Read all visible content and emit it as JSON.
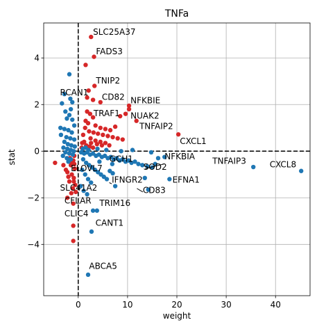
{
  "chart_data": {
    "type": "scatter",
    "title": "TNFa",
    "xlabel": "weight",
    "ylabel": "stat",
    "xlim": [
      -7,
      47
    ],
    "ylim": [
      -6.2,
      5.5
    ],
    "xticks": [
      0,
      10,
      20,
      30,
      40
    ],
    "yticks": [
      -4,
      -2,
      0,
      2,
      4
    ],
    "grid": true,
    "reference_lines": {
      "x": 0,
      "y": 0,
      "style": "dashed"
    },
    "colors": {
      "positive": "#d62728",
      "negative": "#1f77b4"
    },
    "series": [
      {
        "color_key": "positive",
        "points": [
          [
            2.6,
            4.9
          ],
          [
            3.2,
            4.05
          ],
          [
            1.5,
            3.7
          ],
          [
            3.3,
            2.8
          ],
          [
            2.1,
            2.6
          ],
          [
            1.8,
            2.3
          ],
          [
            3.0,
            2.2
          ],
          [
            4.5,
            2.1
          ],
          [
            10.3,
            1.95
          ],
          [
            10.3,
            1.8
          ],
          [
            9.6,
            1.6
          ],
          [
            8.5,
            1.5
          ],
          [
            11.8,
            1.3
          ],
          [
            20.3,
            0.72
          ],
          [
            1.8,
            1.7
          ],
          [
            2.4,
            1.6
          ],
          [
            3.0,
            1.45
          ],
          [
            1.5,
            1.3
          ],
          [
            2.0,
            1.2
          ],
          [
            3.5,
            1.1
          ],
          [
            4.5,
            1.0
          ],
          [
            5.5,
            0.95
          ],
          [
            6.5,
            0.9
          ],
          [
            7.5,
            1.05
          ],
          [
            2.2,
            0.85
          ],
          [
            3.1,
            0.8
          ],
          [
            4.0,
            0.75
          ],
          [
            5.0,
            0.7
          ],
          [
            6.0,
            0.65
          ],
          [
            7.0,
            0.6
          ],
          [
            8.0,
            0.55
          ],
          [
            9.0,
            0.5
          ],
          [
            2.5,
            0.55
          ],
          [
            3.5,
            0.45
          ],
          [
            4.5,
            0.4
          ],
          [
            5.5,
            0.35
          ],
          [
            1.2,
            0.4
          ],
          [
            1.6,
            0.25
          ],
          [
            2.3,
            0.2
          ],
          [
            3.0,
            0.15
          ],
          [
            1.4,
            1.0
          ],
          [
            1.0,
            0.7
          ],
          [
            0.8,
            0.35
          ],
          [
            0.7,
            0.15
          ],
          [
            2.6,
            0.35
          ],
          [
            3.8,
            0.3
          ],
          [
            4.8,
            0.25
          ],
          [
            6.3,
            0.25
          ],
          [
            -0.8,
            -0.2
          ],
          [
            -1.0,
            -0.4
          ],
          [
            -1.5,
            -0.6
          ],
          [
            -0.7,
            -0.75
          ],
          [
            -2.2,
            -0.9
          ],
          [
            -1.3,
            -1.0
          ],
          [
            -0.9,
            -1.15
          ],
          [
            -1.8,
            -1.3
          ],
          [
            -0.6,
            -1.45
          ],
          [
            -1.1,
            -1.6
          ],
          [
            -0.5,
            -1.75
          ],
          [
            -0.9,
            -1.3
          ],
          [
            -4.7,
            -0.5
          ],
          [
            -3.0,
            -0.6
          ],
          [
            -2.5,
            -0.8
          ],
          [
            -1.7,
            -0.3
          ],
          [
            -1.3,
            -0.5
          ],
          [
            -0.8,
            -0.55
          ],
          [
            -2.0,
            -1.1
          ],
          [
            -1.4,
            -1.8
          ],
          [
            -2.2,
            -2.0
          ],
          [
            -1.0,
            -2.25
          ],
          [
            -1.0,
            -3.2
          ],
          [
            -1.0,
            -3.85
          ]
        ]
      },
      {
        "color_key": "negative",
        "points": [
          [
            -1.8,
            3.3
          ],
          [
            -2.8,
            2.45
          ],
          [
            -3.3,
            2.05
          ],
          [
            -1.5,
            1.8
          ],
          [
            -1.8,
            1.55
          ],
          [
            -2.3,
            1.4
          ],
          [
            -1.2,
            1.35
          ],
          [
            -3.6,
            1.0
          ],
          [
            -2.8,
            0.95
          ],
          [
            -2.0,
            0.9
          ],
          [
            -1.3,
            0.8
          ],
          [
            -3.5,
            0.7
          ],
          [
            -2.4,
            0.6
          ],
          [
            -1.6,
            0.55
          ],
          [
            -0.8,
            0.5
          ],
          [
            -2.8,
            0.4
          ],
          [
            -2.1,
            0.3
          ],
          [
            -1.4,
            0.25
          ],
          [
            -0.7,
            0.2
          ],
          [
            -3.0,
            0.15
          ],
          [
            -2.2,
            0.1
          ],
          [
            -1.5,
            0.05
          ],
          [
            -0.9,
            0.0
          ],
          [
            -2.6,
            -0.05
          ],
          [
            -1.8,
            -0.1
          ],
          [
            -1.1,
            -0.15
          ],
          [
            -3.1,
            -0.2
          ],
          [
            -2.3,
            -0.3
          ],
          [
            -1.5,
            -0.35
          ],
          [
            -2.0,
            -0.45
          ],
          [
            -1.2,
            2.1
          ],
          [
            -0.8,
            1.1
          ],
          [
            -2.6,
            1.7
          ],
          [
            -1.6,
            2.25
          ],
          [
            0.6,
            -0.05
          ],
          [
            1.2,
            -0.1
          ],
          [
            1.8,
            -0.05
          ],
          [
            2.4,
            -0.15
          ],
          [
            3.0,
            -0.1
          ],
          [
            3.6,
            -0.2
          ],
          [
            4.2,
            -0.15
          ],
          [
            4.8,
            -0.25
          ],
          [
            5.4,
            -0.2
          ],
          [
            6.0,
            -0.3
          ],
          [
            6.6,
            -0.25
          ],
          [
            7.2,
            -0.35
          ],
          [
            7.8,
            -0.3
          ],
          [
            8.4,
            -0.4
          ],
          [
            9.0,
            -0.35
          ],
          [
            9.6,
            -0.45
          ],
          [
            10.2,
            -0.4
          ],
          [
            10.8,
            -0.5
          ],
          [
            11.5,
            -0.45
          ],
          [
            12.2,
            -0.55
          ],
          [
            13.0,
            -0.6
          ],
          [
            14.0,
            -0.65
          ],
          [
            15.0,
            -0.7
          ],
          [
            16.2,
            -0.3
          ],
          [
            17.5,
            -0.25
          ],
          [
            1.0,
            -0.35
          ],
          [
            1.6,
            -0.5
          ],
          [
            2.2,
            -0.6
          ],
          [
            2.8,
            -0.7
          ],
          [
            3.4,
            -0.8
          ],
          [
            4.0,
            -0.9
          ],
          [
            4.6,
            -1.0
          ],
          [
            5.2,
            -1.1
          ],
          [
            5.8,
            -1.2
          ],
          [
            6.4,
            -0.85
          ],
          [
            7.0,
            -0.95
          ],
          [
            0.8,
            -0.8
          ],
          [
            1.4,
            -1.0
          ],
          [
            2.0,
            -1.2
          ],
          [
            2.6,
            -1.35
          ],
          [
            0.5,
            -1.5
          ],
          [
            1.1,
            -1.7
          ],
          [
            1.8,
            -1.85
          ],
          [
            7.5,
            -1.5
          ],
          [
            13.5,
            -1.15
          ],
          [
            14.2,
            -1.65
          ],
          [
            18.5,
            -1.2
          ],
          [
            35.5,
            -0.68
          ],
          [
            45.2,
            -0.85
          ],
          [
            3.0,
            -2.55
          ],
          [
            3.8,
            -2.55
          ],
          [
            2.7,
            -3.45
          ],
          [
            2.0,
            -5.3
          ],
          [
            15.6,
            -0.55
          ],
          [
            14.8,
            -0.05
          ],
          [
            11.0,
            0.05
          ],
          [
            0.9,
            0.1
          ],
          [
            1.5,
            0.15
          ],
          [
            2.1,
            0.05
          ],
          [
            3.9,
            0.1
          ],
          [
            5.7,
            0.05
          ],
          [
            8.7,
            0.0
          ],
          [
            4.3,
            -0.45
          ],
          [
            6.9,
            -0.55
          ]
        ]
      }
    ],
    "annotations": [
      {
        "text": "SLC25A37",
        "x": 3.0,
        "y": 5.0
      },
      {
        "text": "FADS3",
        "x": 3.6,
        "y": 4.15
      },
      {
        "text": "TNIP2",
        "x": 3.6,
        "y": 2.9
      },
      {
        "text": "RCAN1",
        "x": -3.7,
        "y": 2.4
      },
      {
        "text": "CD82",
        "x": 4.8,
        "y": 2.2
      },
      {
        "text": "NFKBIE",
        "x": 10.6,
        "y": 2.05
      },
      {
        "text": "TRAF1",
        "x": 3.1,
        "y": 1.5
      },
      {
        "text": "NUAK2",
        "x": 10.6,
        "y": 1.4
      },
      {
        "text": "TNFAIP2",
        "x": 12.4,
        "y": 0.95
      },
      {
        "text": "CXCL1",
        "x": 20.6,
        "y": 0.3
      },
      {
        "text": "GCH1",
        "x": 6.3,
        "y": -0.45
      },
      {
        "text": "NFKBIA",
        "x": 17.5,
        "y": -0.35
      },
      {
        "text": "TNFAIP3",
        "x": 27.2,
        "y": -0.55
      },
      {
        "text": "CXCL8",
        "x": 38.8,
        "y": -0.7
      },
      {
        "text": "SOD2",
        "x": 13.2,
        "y": -0.8
      },
      {
        "text": "ELOVL7",
        "x": -1.5,
        "y": -0.85
      },
      {
        "text": "IFNGR2",
        "x": 6.8,
        "y": -1.35
      },
      {
        "text": "EFNA1",
        "x": 19.1,
        "y": -1.35
      },
      {
        "text": "SLC41A2",
        "x": -3.7,
        "y": -1.7
      },
      {
        "text": "CD83",
        "x": 13.1,
        "y": -1.8
      },
      {
        "text": "CFLAR",
        "x": -2.8,
        "y": -2.25
      },
      {
        "text": "TRIM16",
        "x": 4.3,
        "y": -2.35
      },
      {
        "text": "CLIC4",
        "x": -2.8,
        "y": -2.8
      },
      {
        "text": "CANT1",
        "x": 3.5,
        "y": -3.2
      },
      {
        "text": "ABCA5",
        "x": 2.2,
        "y": -5.05
      }
    ],
    "connectors": [
      {
        "from": [
          17.4,
          -0.55
        ],
        "to": [
          13.6,
          -0.75
        ]
      },
      {
        "from": [
          13.1,
          -1.75
        ],
        "to": [
          11.9,
          -1.6
        ]
      },
      {
        "from": [
          6.8,
          -1.4
        ],
        "to": [
          6.3,
          -1.35
        ]
      }
    ]
  }
}
